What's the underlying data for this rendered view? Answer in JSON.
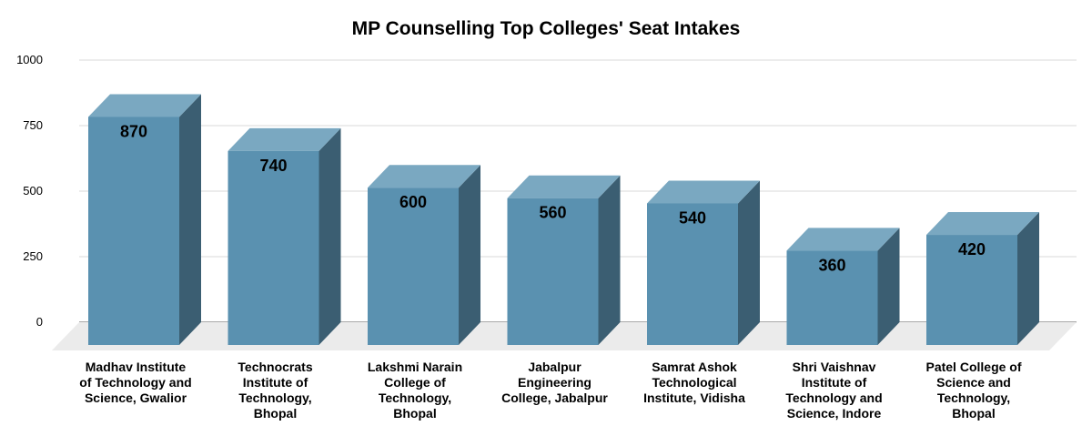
{
  "chart_data": {
    "type": "bar",
    "title": "MP Counselling Top Colleges' Seat Intakes",
    "categories": [
      [
        "Madhav Institute",
        "of Technology and",
        "Science, Gwalior"
      ],
      [
        "Technocrats",
        "Institute of",
        "Technology,",
        "Bhopal"
      ],
      [
        "Lakshmi Narain",
        "College of",
        "Technology,",
        "Bhopal"
      ],
      [
        "Jabalpur",
        "Engineering",
        "College, Jabalpur"
      ],
      [
        "Samrat Ashok",
        "Technological",
        "Institute, Vidisha"
      ],
      [
        "Shri Vaishnav",
        "Institute of",
        "Technology and",
        "Science, Indore"
      ],
      [
        "Patel College of",
        "Science and",
        "Technology,",
        "Bhopal"
      ]
    ],
    "values": [
      870,
      740,
      600,
      560,
      540,
      360,
      420
    ],
    "value_labels": [
      "870",
      "740",
      "600",
      "560",
      "540",
      "360",
      "420"
    ],
    "y_ticks": [
      "0",
      "250",
      "500",
      "750",
      "1000"
    ],
    "ylim": [
      0,
      1000
    ],
    "xlabel": "",
    "ylabel": "",
    "grid": true,
    "three_d": true,
    "colors": {
      "front": "#5a91b0",
      "top": "#7aa8c1",
      "side": "#3b5e72",
      "floor": "#ebebeb",
      "grid": "#d9d9d9",
      "baseline": "#555555"
    }
  }
}
